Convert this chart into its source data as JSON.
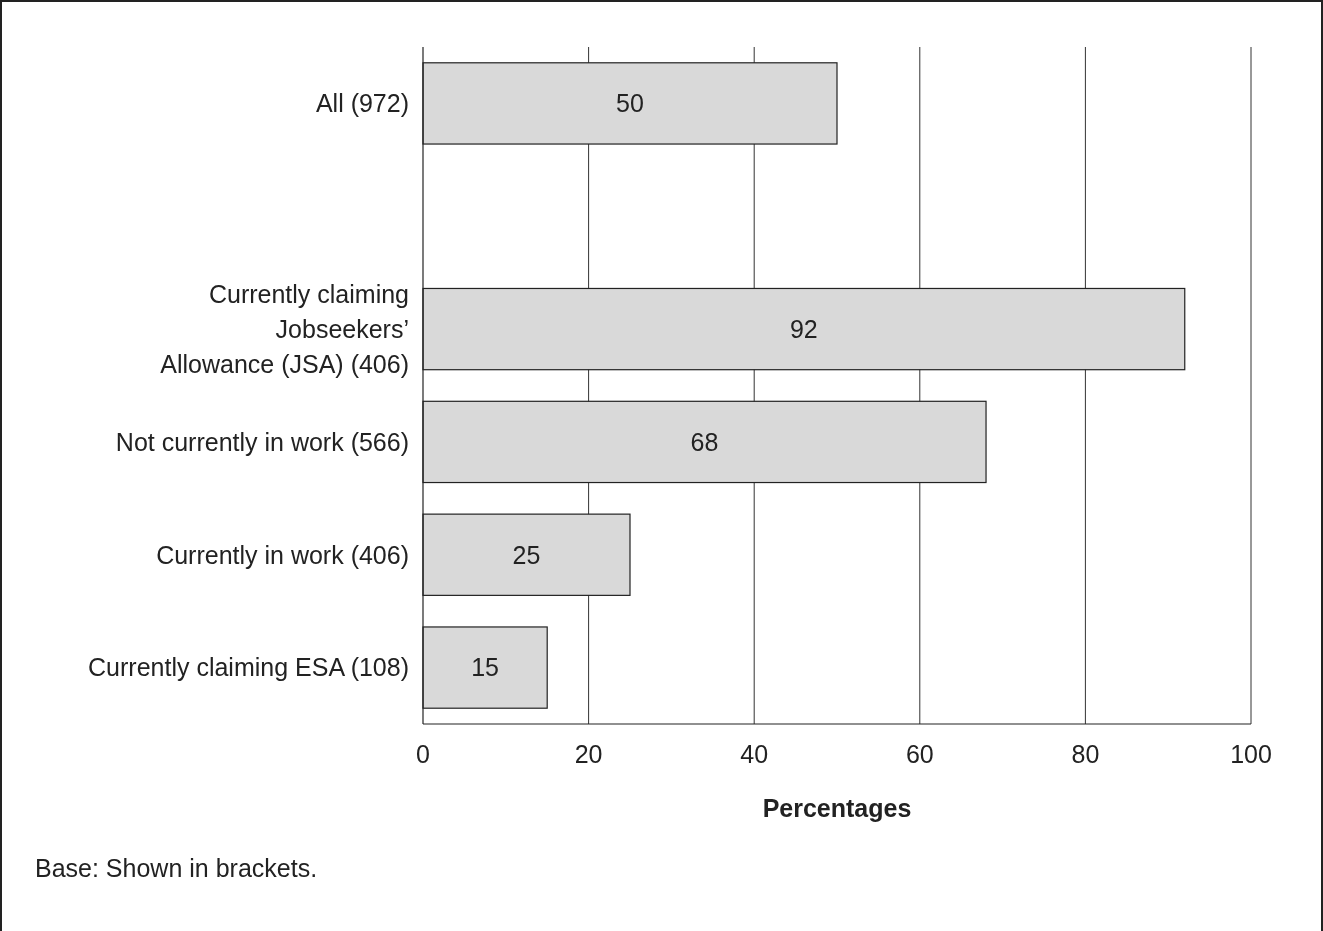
{
  "chart_data": {
    "type": "bar",
    "orientation": "horizontal",
    "categories": [
      "All (972)",
      null,
      "Currently claiming\nJobseekers’\nAllowance (JSA) (406)",
      "Not currently in work (566)",
      "Currently in work (406)",
      "Currently claiming ESA (108)"
    ],
    "values": [
      50,
      null,
      92,
      68,
      25,
      15
    ],
    "color": "#d9d9d9",
    "xlim": [
      0,
      100
    ],
    "xticks": [
      0,
      20,
      40,
      60,
      80,
      100
    ],
    "xlabel": "Percentages",
    "grid": "x",
    "data_labels": true,
    "annotations": [
      "Base: Shown in brackets."
    ]
  }
}
